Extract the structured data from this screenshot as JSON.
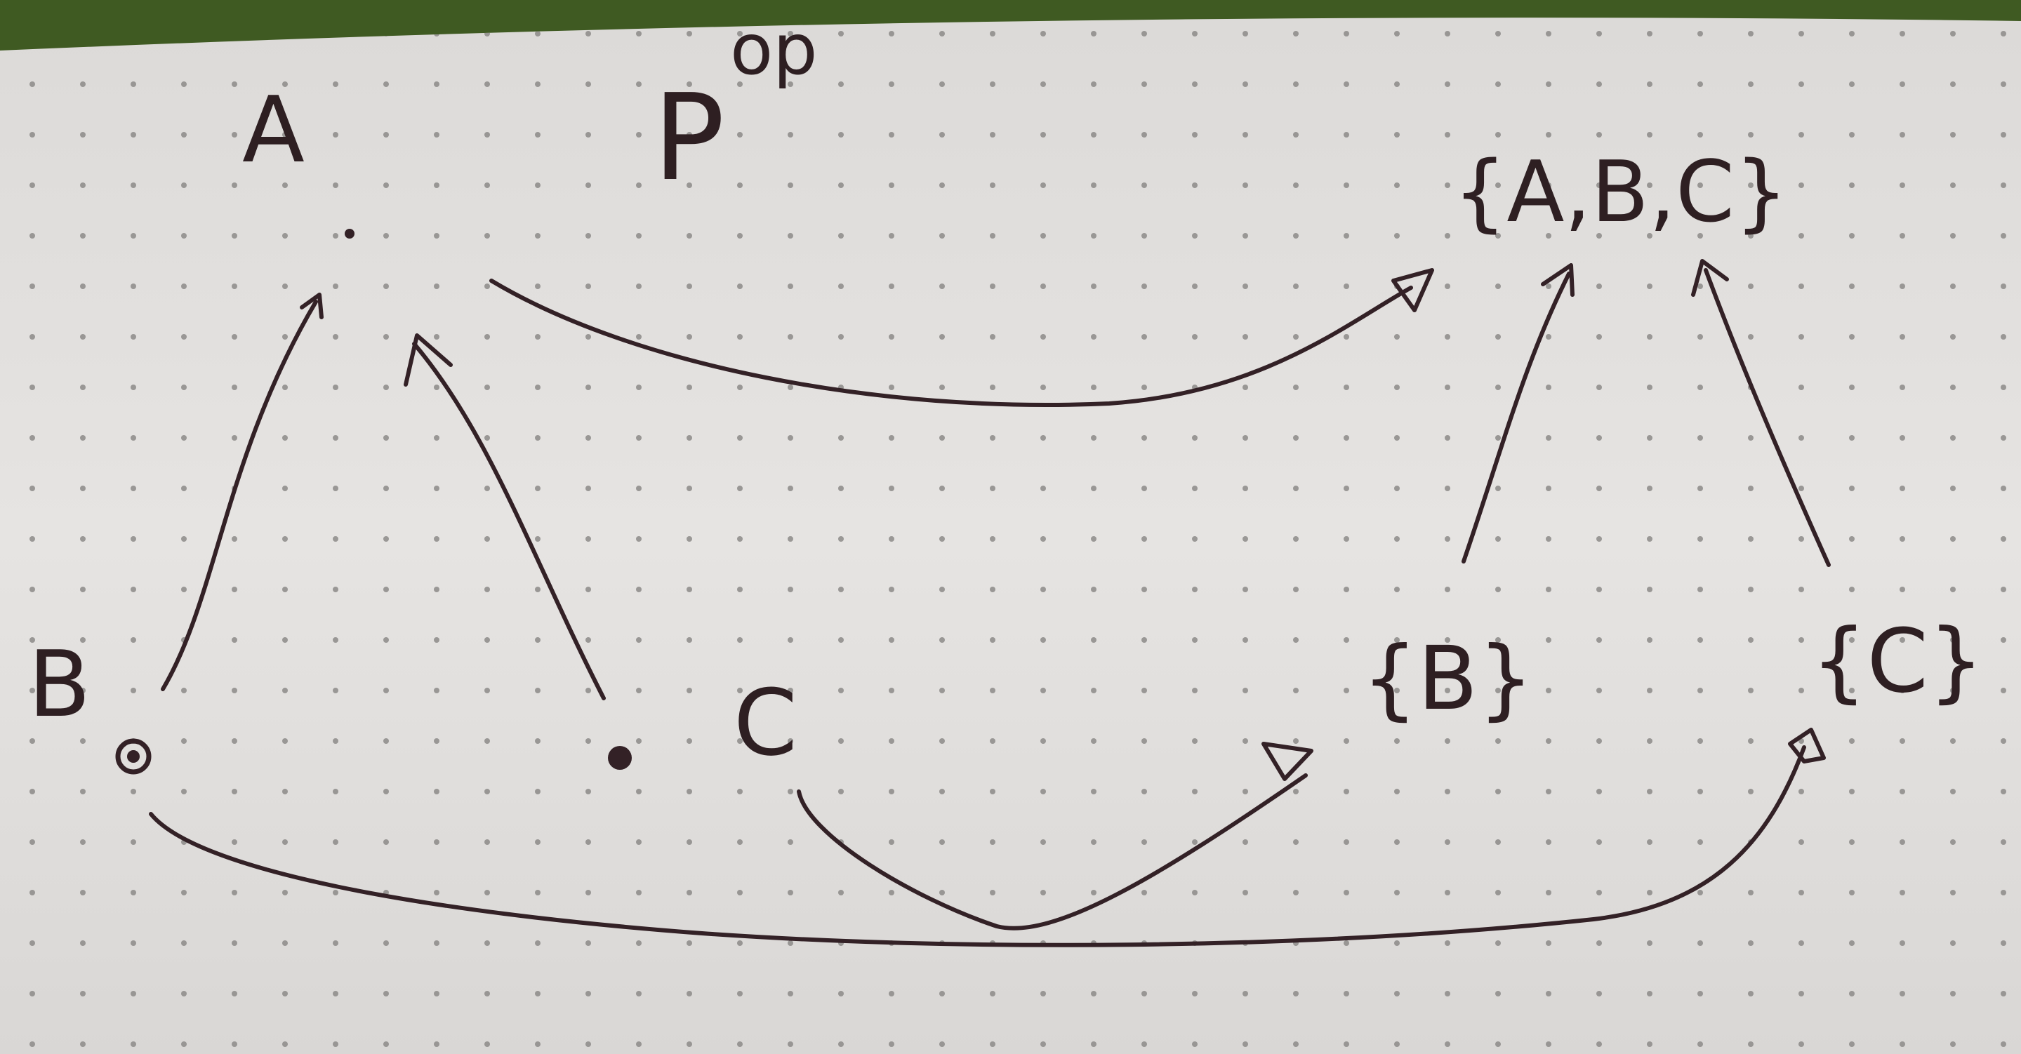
{
  "colors": {
    "paper": "#e4e2e0",
    "ink": "#332126",
    "background": "#3f5a22",
    "dot": "#8c8a88"
  },
  "left_poset": {
    "title": "P",
    "title_superscript": "op",
    "nodes": {
      "top": "A",
      "bottom_left": "B",
      "bottom_right": "C"
    }
  },
  "right_poset": {
    "nodes": {
      "top": "{A,B,C}",
      "bottom_left": "{B}",
      "bottom_right": "{C}"
    }
  }
}
